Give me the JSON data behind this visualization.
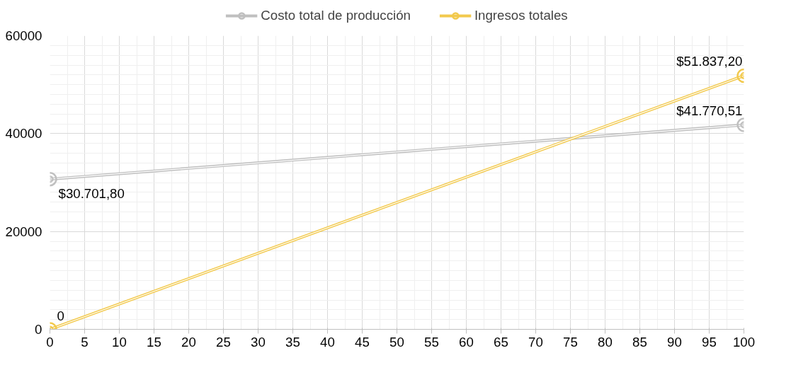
{
  "chart_data": {
    "type": "line",
    "x": [
      0,
      100
    ],
    "series": [
      {
        "name": "Costo total de producción",
        "color": "#bfbfbf",
        "values": [
          30701.8,
          41770.51
        ],
        "value_labels": [
          "$30.701,80",
          "$41.770,51"
        ]
      },
      {
        "name": "Ingresos totales",
        "color": "#f2c94c",
        "values": [
          0,
          51837.2
        ],
        "value_labels": [
          "0",
          "$51.837,20"
        ]
      }
    ],
    "xlim": [
      0,
      100
    ],
    "xticks": [
      0,
      5,
      10,
      15,
      20,
      25,
      30,
      35,
      40,
      45,
      50,
      55,
      60,
      65,
      70,
      75,
      80,
      85,
      90,
      95,
      100
    ],
    "ylim": [
      0,
      60000
    ],
    "yticks": [
      0,
      20000,
      40000,
      60000
    ],
    "grid": true,
    "legend": "top",
    "marker": "circle",
    "line_style": "solid"
  }
}
